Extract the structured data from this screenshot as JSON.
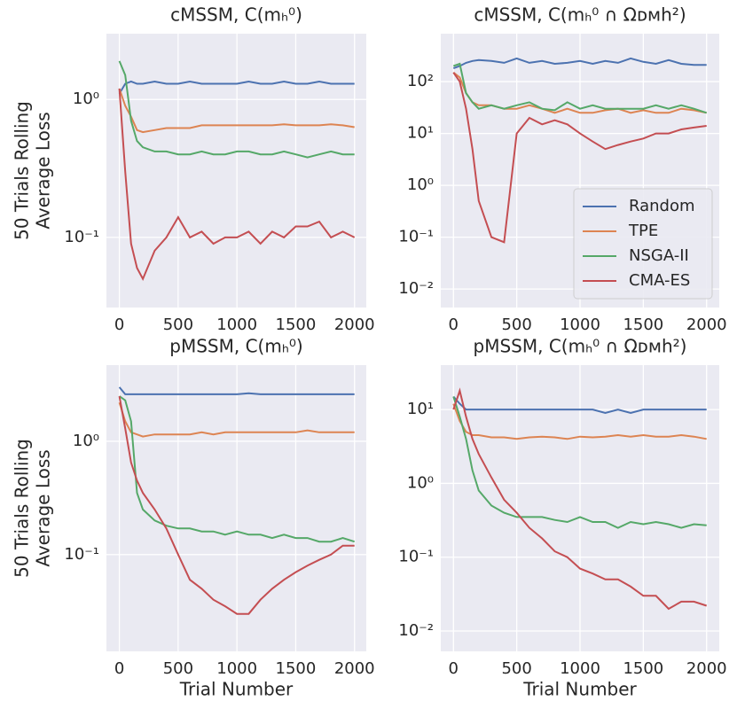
{
  "chart_data": [
    {
      "type": "line",
      "title": "cMSSM, C(mₕ⁰)",
      "ylabel": [
        "50 Trials Rolling",
        "Average Loss"
      ],
      "log_y": true,
      "grid": true,
      "x": [
        0,
        50,
        100,
        150,
        200,
        300,
        400,
        500,
        600,
        700,
        800,
        900,
        1000,
        1100,
        1200,
        1300,
        1400,
        1500,
        1600,
        1700,
        1800,
        1900,
        2000
      ],
      "xlim": [
        -110,
        2100
      ],
      "xticks": [
        0,
        500,
        1000,
        1500,
        2000
      ],
      "ylim": [
        0.031,
        3.0
      ],
      "yticks": [
        {
          "value": 0.1,
          "label": "10⁻¹"
        },
        {
          "value": 1,
          "label": "10⁰"
        }
      ],
      "series": [
        {
          "color": "#4c72b0",
          "values": [
            1.1,
            1.3,
            1.35,
            1.3,
            1.3,
            1.35,
            1.3,
            1.3,
            1.35,
            1.3,
            1.3,
            1.3,
            1.3,
            1.35,
            1.3,
            1.3,
            1.35,
            1.3,
            1.3,
            1.35,
            1.3,
            1.3,
            1.3
          ]
        },
        {
          "color": "#dd8452",
          "values": [
            1.2,
            0.9,
            0.75,
            0.6,
            0.58,
            0.6,
            0.62,
            0.62,
            0.62,
            0.65,
            0.65,
            0.65,
            0.65,
            0.65,
            0.65,
            0.65,
            0.66,
            0.65,
            0.65,
            0.65,
            0.66,
            0.65,
            0.63
          ]
        },
        {
          "color": "#55a868",
          "values": [
            1.9,
            1.5,
            0.7,
            0.5,
            0.45,
            0.42,
            0.42,
            0.4,
            0.4,
            0.42,
            0.4,
            0.4,
            0.42,
            0.42,
            0.4,
            0.4,
            0.42,
            0.4,
            0.38,
            0.4,
            0.42,
            0.4,
            0.4
          ]
        },
        {
          "color": "#c44e52",
          "values": [
            1.2,
            0.3,
            0.09,
            0.06,
            0.05,
            0.08,
            0.1,
            0.14,
            0.1,
            0.11,
            0.09,
            0.1,
            0.1,
            0.11,
            0.09,
            0.11,
            0.1,
            0.12,
            0.12,
            0.13,
            0.1,
            0.11,
            0.1
          ]
        }
      ]
    },
    {
      "type": "line",
      "title": "cMSSM, C(mₕ⁰ ∩ Ωᴅᴍh²)",
      "log_y": true,
      "grid": true,
      "legend": "lower right",
      "x": [
        0,
        50,
        100,
        150,
        200,
        300,
        400,
        500,
        600,
        700,
        800,
        900,
        1000,
        1100,
        1200,
        1300,
        1400,
        1500,
        1600,
        1700,
        1800,
        1900,
        2000
      ],
      "xlim": [
        -100,
        2100
      ],
      "xticks": [
        0,
        500,
        1000,
        1500,
        2000
      ],
      "ylim": [
        0.0044,
        840
      ],
      "yticks": [
        {
          "value": 0.01,
          "label": "10⁻²"
        },
        {
          "value": 0.1,
          "label": "10⁻¹"
        },
        {
          "value": 1,
          "label": "10⁰"
        },
        {
          "value": 10,
          "label": "10¹"
        },
        {
          "value": 100,
          "label": "10²"
        }
      ],
      "series": [
        {
          "name": "Random",
          "color": "#4c72b0",
          "values": [
            180,
            200,
            230,
            250,
            260,
            250,
            230,
            280,
            230,
            250,
            220,
            230,
            250,
            220,
            250,
            230,
            280,
            240,
            220,
            260,
            220,
            210,
            210
          ]
        },
        {
          "name": "TPE",
          "color": "#dd8452",
          "values": [
            150,
            120,
            60,
            40,
            35,
            35,
            30,
            30,
            35,
            30,
            25,
            30,
            25,
            25,
            28,
            30,
            25,
            28,
            25,
            25,
            30,
            28,
            25
          ]
        },
        {
          "name": "NSGA-II",
          "color": "#55a868",
          "values": [
            200,
            220,
            60,
            40,
            30,
            35,
            30,
            35,
            40,
            30,
            28,
            40,
            30,
            35,
            30,
            30,
            30,
            30,
            35,
            30,
            35,
            30,
            25
          ]
        },
        {
          "name": "CMA-ES",
          "color": "#c44e52",
          "values": [
            150,
            100,
            30,
            5,
            0.5,
            0.1,
            0.08,
            10,
            20,
            15,
            18,
            15,
            10,
            7,
            5,
            6,
            7,
            8,
            10,
            10,
            12,
            13,
            14
          ]
        }
      ]
    },
    {
      "type": "line",
      "title": "pMSSM, C(mₕ⁰)",
      "ylabel": [
        "50 Trials Rolling",
        "Average Loss"
      ],
      "xlabel": "Trial Number",
      "log_y": true,
      "grid": true,
      "x": [
        0,
        50,
        100,
        150,
        200,
        300,
        400,
        500,
        600,
        700,
        800,
        900,
        1000,
        1100,
        1200,
        1300,
        1400,
        1500,
        1600,
        1700,
        1800,
        1900,
        2000
      ],
      "xlim": [
        -110,
        2100
      ],
      "xticks": [
        0,
        500,
        1000,
        1500,
        2000
      ],
      "ylim": [
        0.014,
        4.7
      ],
      "yticks": [
        {
          "value": 0.1,
          "label": "10⁻¹"
        },
        {
          "value": 1,
          "label": "10⁰"
        }
      ],
      "series": [
        {
          "color": "#4c72b0",
          "values": [
            3.0,
            2.6,
            2.6,
            2.6,
            2.6,
            2.6,
            2.6,
            2.6,
            2.6,
            2.6,
            2.6,
            2.6,
            2.6,
            2.65,
            2.6,
            2.6,
            2.6,
            2.6,
            2.6,
            2.6,
            2.6,
            2.6,
            2.6
          ]
        },
        {
          "color": "#dd8452",
          "values": [
            2.2,
            1.5,
            1.2,
            1.15,
            1.1,
            1.15,
            1.15,
            1.15,
            1.15,
            1.2,
            1.15,
            1.2,
            1.2,
            1.2,
            1.2,
            1.2,
            1.2,
            1.2,
            1.25,
            1.2,
            1.2,
            1.2,
            1.2
          ]
        },
        {
          "color": "#55a868",
          "values": [
            2.5,
            2.3,
            1.5,
            0.35,
            0.25,
            0.2,
            0.18,
            0.17,
            0.17,
            0.16,
            0.16,
            0.15,
            0.16,
            0.15,
            0.15,
            0.14,
            0.15,
            0.14,
            0.14,
            0.13,
            0.13,
            0.14,
            0.13
          ]
        },
        {
          "color": "#c44e52",
          "values": [
            2.5,
            1.3,
            0.65,
            0.45,
            0.35,
            0.25,
            0.17,
            0.1,
            0.06,
            0.05,
            0.04,
            0.035,
            0.03,
            0.03,
            0.04,
            0.05,
            0.06,
            0.07,
            0.08,
            0.09,
            0.1,
            0.12,
            0.12
          ]
        }
      ]
    },
    {
      "type": "line",
      "title": "pMSSM, C(mₕ⁰ ∩ Ωᴅᴍh²)",
      "xlabel": "Trial Number",
      "log_y": true,
      "grid": true,
      "x": [
        0,
        50,
        100,
        150,
        200,
        300,
        400,
        500,
        600,
        700,
        800,
        900,
        1000,
        1100,
        1200,
        1300,
        1400,
        1500,
        1600,
        1700,
        1800,
        1900,
        2000
      ],
      "xlim": [
        -100,
        2100
      ],
      "xticks": [
        0,
        500,
        1000,
        1500,
        2000
      ],
      "ylim": [
        0.0053,
        40
      ],
      "yticks": [
        {
          "value": 0.01,
          "label": "10⁻²"
        },
        {
          "value": 0.1,
          "label": "10⁻¹"
        },
        {
          "value": 1,
          "label": "10⁰"
        },
        {
          "value": 10,
          "label": "10¹"
        }
      ],
      "series": [
        {
          "color": "#4c72b0",
          "values": [
            15,
            12,
            10,
            10,
            10,
            10,
            10,
            10,
            10,
            10,
            10,
            10,
            10,
            10,
            9,
            10,
            9,
            10,
            10,
            10,
            10,
            10,
            10
          ]
        },
        {
          "color": "#dd8452",
          "values": [
            12,
            7,
            5,
            4.5,
            4.5,
            4.2,
            4.2,
            4.0,
            4.2,
            4.3,
            4.2,
            4.0,
            4.3,
            4.2,
            4.3,
            4.5,
            4.3,
            4.5,
            4.3,
            4.3,
            4.5,
            4.3,
            4.0
          ]
        },
        {
          "color": "#55a868",
          "values": [
            15,
            8,
            4,
            1.5,
            0.8,
            0.5,
            0.4,
            0.35,
            0.35,
            0.35,
            0.32,
            0.3,
            0.35,
            0.3,
            0.3,
            0.25,
            0.3,
            0.28,
            0.3,
            0.28,
            0.25,
            0.28,
            0.27
          ]
        },
        {
          "color": "#c44e52",
          "values": [
            10,
            18,
            8,
            4,
            2.5,
            1.2,
            0.6,
            0.4,
            0.25,
            0.18,
            0.12,
            0.1,
            0.07,
            0.06,
            0.05,
            0.05,
            0.04,
            0.03,
            0.03,
            0.02,
            0.025,
            0.025,
            0.022
          ]
        }
      ]
    }
  ]
}
